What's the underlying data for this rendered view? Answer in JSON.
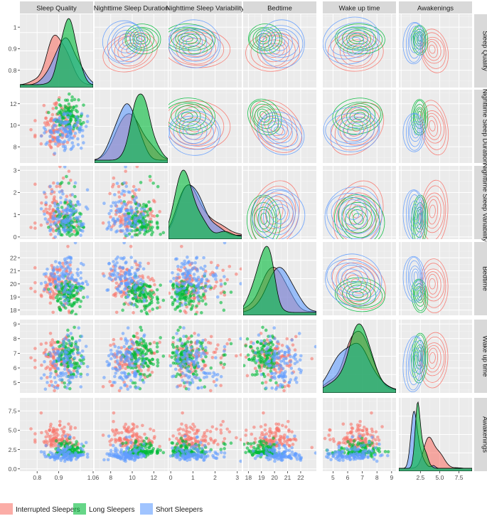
{
  "chart_data": {
    "type": "scatter",
    "title": "",
    "variables": [
      {
        "name": "Sleep Quality",
        "range": [
          0.72,
          1.06
        ],
        "ticks": [
          0.8,
          0.9,
          1.0
        ],
        "tick_labels": [
          "0.8",
          "0.9",
          "1"
        ],
        "x_tick_labels": [
          "0.8",
          "0.9",
          "1.06"
        ]
      },
      {
        "name": "Nighttime Sleep Duration",
        "range": [
          6.5,
          13.3
        ],
        "ticks": [
          8,
          10,
          12
        ],
        "tick_labels": [
          "8",
          "10",
          "12"
        ],
        "x_tick_labels": [
          "8",
          "10",
          "12"
        ]
      },
      {
        "name": "Nighttime Sleep Variability",
        "range": [
          -0.1,
          3.2
        ],
        "ticks": [
          0,
          1,
          2,
          3
        ],
        "tick_labels": [
          "0",
          "1",
          "2",
          "3"
        ],
        "x_tick_labels": [
          "0",
          "1",
          "2",
          "3"
        ]
      },
      {
        "name": "Bedtime",
        "range": [
          17.6,
          23.2
        ],
        "ticks": [
          18,
          19,
          20,
          21,
          22
        ],
        "tick_labels": [
          "18",
          "19",
          "20",
          "21",
          "22"
        ],
        "x_tick_labels": [
          "18",
          "19",
          "20",
          "21",
          "22"
        ]
      },
      {
        "name": "Wake up time",
        "range": [
          4.3,
          9.3
        ],
        "ticks": [
          5,
          6,
          7,
          8,
          9
        ],
        "tick_labels": [
          "5",
          "6",
          "7",
          "8",
          "9"
        ],
        "x_tick_labels": [
          "5",
          "6",
          "7",
          "8",
          "9"
        ]
      },
      {
        "name": "Awakenings",
        "range": [
          -0.3,
          9.2
        ],
        "ticks": [
          0,
          2.5,
          5,
          7.5
        ],
        "tick_labels": [
          "0.0",
          "2.5",
          "5.0",
          "7.5"
        ],
        "x_tick_labels": [
          "2.5",
          "5.0",
          "7.5"
        ]
      }
    ],
    "legend_position": "bottom",
    "grid": true,
    "series": [
      {
        "name": "Interrupted Sleepers",
        "color": "#F8766D",
        "means": [
          0.895,
          9.8,
          0.95,
          19.9,
          6.7,
          3.9
        ],
        "sds": [
          0.045,
          1.1,
          0.55,
          0.9,
          0.75,
          0.9
        ]
      },
      {
        "name": "Long Sleepers",
        "color": "#00BA38",
        "means": [
          0.945,
          10.8,
          0.7,
          19.3,
          6.7,
          2.3
        ],
        "sds": [
          0.035,
          0.75,
          0.45,
          0.6,
          0.7,
          0.45
        ]
      },
      {
        "name": "Short Sleepers",
        "color": "#619CFF",
        "means": [
          0.93,
          9.5,
          0.85,
          20.5,
          6.4,
          1.8
        ],
        "sds": [
          0.045,
          0.9,
          0.5,
          0.95,
          0.95,
          0.5
        ]
      }
    ]
  }
}
